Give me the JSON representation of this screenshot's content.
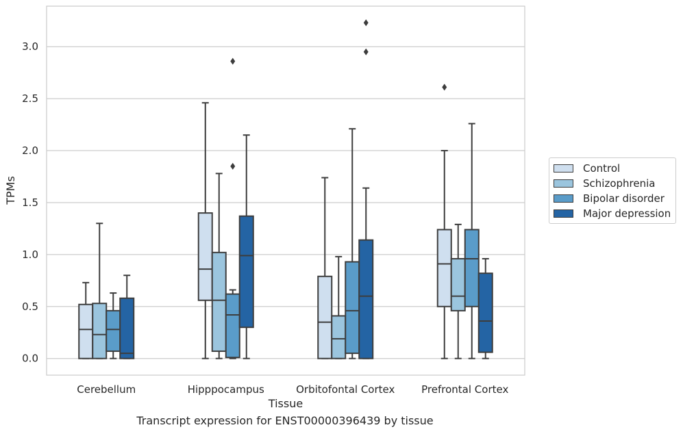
{
  "chart_data": {
    "type": "boxplot",
    "xlabel": "Tissue",
    "ylabel": "TPMs",
    "ylim": [
      -0.16,
      3.39
    ],
    "yticks": [
      "0.0",
      "0.5",
      "1.0",
      "1.5",
      "2.0",
      "2.5",
      "3.0"
    ],
    "grid": true,
    "legend_position": "right",
    "categories": [
      "Cerebellum",
      "Hipppocampus",
      "Orbitofontal Cortex",
      "Prefrontal Cortex"
    ],
    "series": [
      {
        "name": "Control",
        "color": "#cfdfef",
        "boxes": [
          {
            "whislo": 0.0,
            "q1": 0.0,
            "med": 0.28,
            "q3": 0.52,
            "whishi": 0.73,
            "fliers": []
          },
          {
            "whislo": 0.0,
            "q1": 0.56,
            "med": 0.86,
            "q3": 1.4,
            "whishi": 2.46,
            "fliers": []
          },
          {
            "whislo": 0.0,
            "q1": 0.0,
            "med": 0.35,
            "q3": 0.79,
            "whishi": 1.74,
            "fliers": []
          },
          {
            "whislo": 0.0,
            "q1": 0.5,
            "med": 0.91,
            "q3": 1.24,
            "whishi": 2.0,
            "fliers": [
              2.61
            ]
          }
        ]
      },
      {
        "name": "Schizophrenia",
        "color": "#9bc5de",
        "boxes": [
          {
            "whislo": 0.0,
            "q1": 0.0,
            "med": 0.23,
            "q3": 0.53,
            "whishi": 1.3,
            "fliers": []
          },
          {
            "whislo": 0.0,
            "q1": 0.07,
            "med": 0.56,
            "q3": 1.02,
            "whishi": 1.78,
            "fliers": []
          },
          {
            "whislo": 0.0,
            "q1": 0.0,
            "med": 0.19,
            "q3": 0.41,
            "whishi": 0.98,
            "fliers": []
          },
          {
            "whislo": 0.0,
            "q1": 0.46,
            "med": 0.6,
            "q3": 0.96,
            "whishi": 1.29,
            "fliers": []
          }
        ]
      },
      {
        "name": "Bipolar disorder",
        "color": "#5a9cc9",
        "boxes": [
          {
            "whislo": 0.0,
            "q1": 0.07,
            "med": 0.28,
            "q3": 0.46,
            "whishi": 0.63,
            "fliers": []
          },
          {
            "whislo": 0.0,
            "q1": 0.01,
            "med": 0.42,
            "q3": 0.62,
            "whishi": 0.66,
            "fliers": [
              1.85,
              2.86
            ]
          },
          {
            "whislo": 0.0,
            "q1": 0.05,
            "med": 0.46,
            "q3": 0.93,
            "whishi": 2.21,
            "fliers": []
          },
          {
            "whislo": 0.0,
            "q1": 0.5,
            "med": 0.96,
            "q3": 1.24,
            "whishi": 2.26,
            "fliers": []
          }
        ]
      },
      {
        "name": "Major depression",
        "color": "#2464a4",
        "boxes": [
          {
            "whislo": 0.0,
            "q1": 0.0,
            "med": 0.05,
            "q3": 0.58,
            "whishi": 0.8,
            "fliers": []
          },
          {
            "whislo": 0.0,
            "q1": 0.3,
            "med": 0.99,
            "q3": 1.37,
            "whishi": 2.15,
            "fliers": []
          },
          {
            "whislo": 0.0,
            "q1": 0.0,
            "med": 0.6,
            "q3": 1.14,
            "whishi": 1.64,
            "fliers": [
              2.95,
              3.23
            ]
          },
          {
            "whislo": 0.0,
            "q1": 0.06,
            "med": 0.36,
            "q3": 0.82,
            "whishi": 0.96,
            "fliers": []
          }
        ]
      }
    ]
  },
  "caption": "Transcript expression for ENST00000396439 by tissue"
}
